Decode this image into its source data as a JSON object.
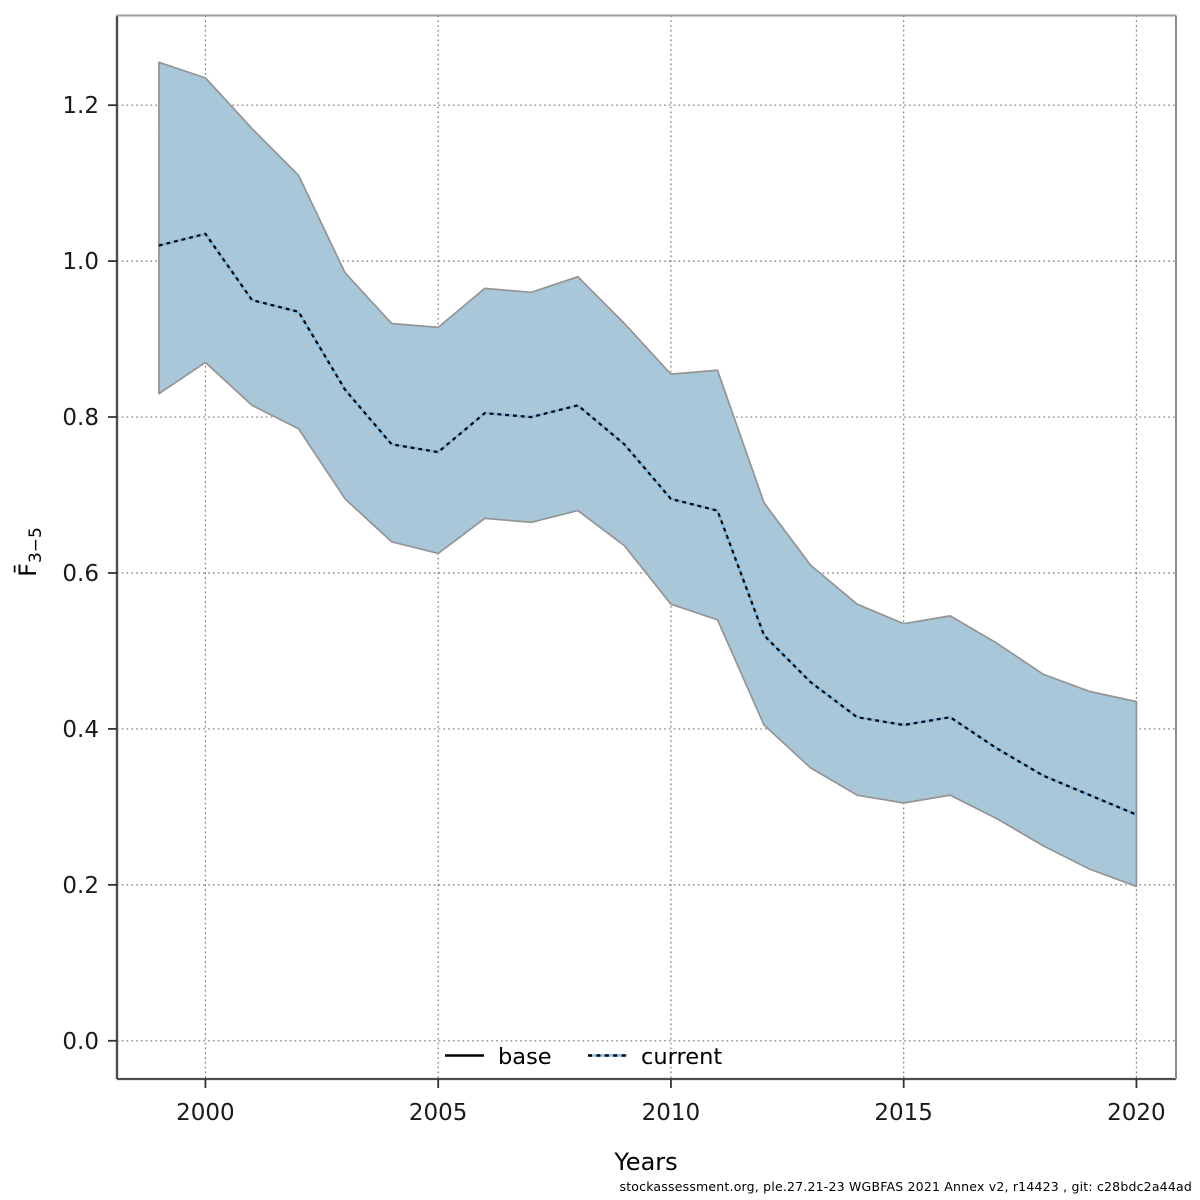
{
  "page": {
    "background": "#ffffff"
  },
  "chart_data": {
    "type": "line",
    "title": "",
    "xlabel": "Years",
    "ylabel_main": "F̄",
    "ylabel_sub": "3−5",
    "grid": "dotted",
    "xlim": [
      1998.1,
      2020.85
    ],
    "ylim": [
      -0.049,
      1.315
    ],
    "xticks": [
      2000,
      2005,
      2010,
      2015,
      2020
    ],
    "ytick_labels": [
      "0.0",
      "0.2",
      "0.4",
      "0.6",
      "0.8",
      "1.0",
      "1.2"
    ],
    "x": [
      1999,
      2000,
      2001,
      2002,
      2003,
      2004,
      2005,
      2006,
      2007,
      2008,
      2009,
      2010,
      2011,
      2012,
      2013,
      2014,
      2015,
      2016,
      2017,
      2018,
      2019,
      2020
    ],
    "series": [
      {
        "name": "base",
        "line_style": "solid",
        "color": "#000000",
        "values": [
          1.02,
          1.035,
          0.95,
          0.935,
          0.835,
          0.765,
          0.755,
          0.805,
          0.8,
          0.815,
          0.765,
          0.695,
          0.68,
          0.52,
          0.46,
          0.415,
          0.405,
          0.415,
          0.375,
          0.34,
          0.315,
          0.29
        ]
      },
      {
        "name": "current",
        "line_style": "dotted",
        "color": "#7cbde8",
        "dot_color": "#000000",
        "values": [
          1.02,
          1.035,
          0.95,
          0.935,
          0.835,
          0.765,
          0.755,
          0.805,
          0.8,
          0.815,
          0.765,
          0.695,
          0.68,
          0.52,
          0.46,
          0.415,
          0.405,
          0.415,
          0.375,
          0.34,
          0.315,
          0.29
        ]
      }
    ],
    "confidence_band": {
      "fill": "#a8c7d8",
      "edge": "#949494",
      "lower": [
        0.83,
        0.87,
        0.815,
        0.785,
        0.695,
        0.64,
        0.625,
        0.67,
        0.665,
        0.68,
        0.635,
        0.56,
        0.54,
        0.405,
        0.35,
        0.315,
        0.305,
        0.315,
        0.285,
        0.25,
        0.22,
        0.198
      ],
      "upper": [
        1.255,
        1.235,
        1.17,
        1.11,
        0.985,
        0.92,
        0.915,
        0.965,
        0.96,
        0.98,
        0.92,
        0.855,
        0.86,
        0.69,
        0.61,
        0.56,
        0.535,
        0.545,
        0.51,
        0.47,
        0.448,
        0.435
      ]
    },
    "legend_position": "bottom-center"
  },
  "legend": {
    "items": [
      {
        "label": "base",
        "swatch": "solid-black-line"
      },
      {
        "label": "current",
        "swatch": "dotted-blue-line"
      }
    ]
  },
  "footer": {
    "text": "stockassessment.org, ple.27.21-23 WGBFAS 2021 Annex v2, r14423 , git: c28bdc2a44ad"
  }
}
